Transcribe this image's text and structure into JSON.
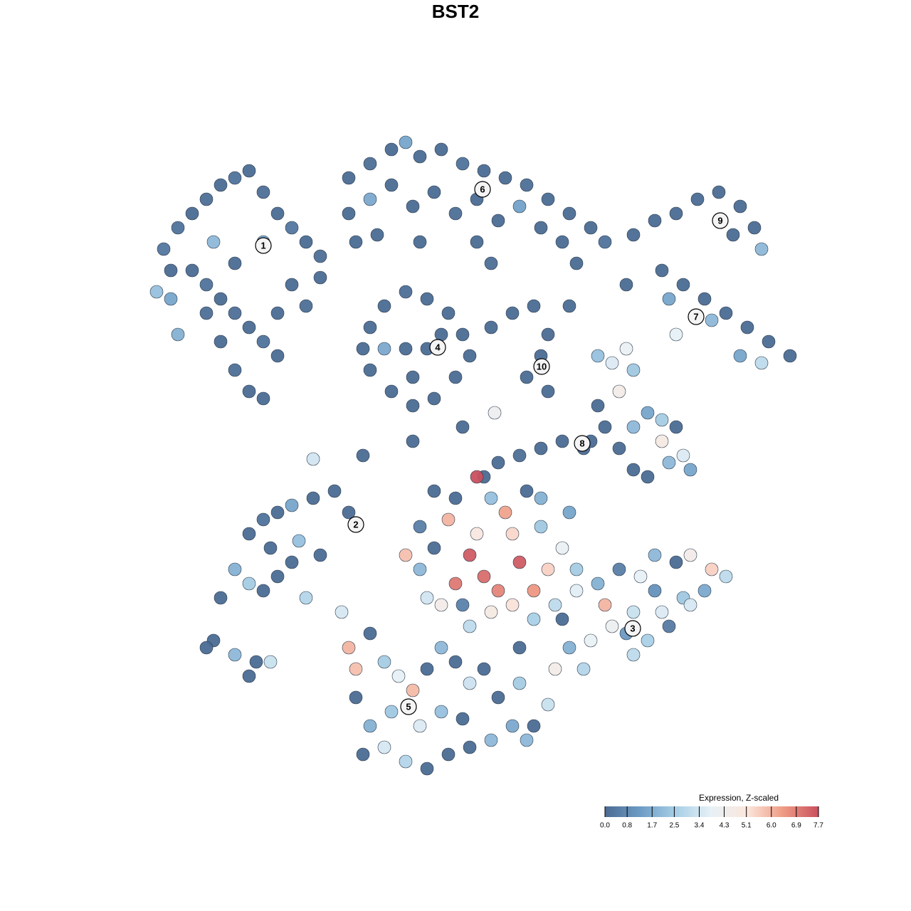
{
  "chart_data": {
    "type": "scatter",
    "title": "BST2",
    "xlim": [
      0,
      95
    ],
    "ylim": [
      0,
      93
    ],
    "x": [
      4,
      6,
      8,
      10,
      12,
      14,
      16,
      18,
      20,
      22,
      24,
      26,
      8,
      10,
      12,
      14,
      16,
      18,
      20,
      14,
      16,
      18,
      12,
      10,
      5,
      3,
      6,
      22,
      24,
      26,
      18,
      11,
      14,
      20,
      5,
      30,
      33,
      36,
      38,
      40,
      43,
      46,
      49,
      52,
      55,
      58,
      61,
      64,
      66,
      30,
      33,
      36,
      39,
      42,
      45,
      48,
      51,
      54,
      57,
      60,
      62,
      31,
      34,
      48,
      50,
      40,
      33,
      35,
      38,
      41,
      44,
      46,
      47,
      45,
      42,
      39,
      36,
      33,
      32,
      38,
      41,
      35,
      43,
      39,
      50,
      53,
      56,
      58,
      57,
      55,
      58,
      61,
      70,
      73,
      76,
      79,
      82,
      85,
      87,
      88,
      84,
      74,
      77,
      80,
      83,
      86,
      89,
      92,
      81,
      85,
      88,
      75,
      69,
      76,
      65,
      67,
      69,
      70,
      68,
      65,
      66,
      64,
      68,
      70,
      72,
      74,
      76,
      77,
      75,
      72,
      70,
      78,
      74,
      63,
      60,
      57,
      54,
      51,
      49,
      16,
      18,
      20,
      22,
      25,
      28,
      30,
      14,
      16,
      18,
      20,
      22,
      24,
      26,
      19,
      23,
      12,
      29,
      11,
      14,
      17,
      19,
      10,
      16,
      62,
      65,
      68,
      71,
      73,
      76,
      78,
      81,
      83,
      80,
      77,
      74,
      70,
      67,
      64,
      61,
      59,
      63,
      69,
      72,
      75,
      78,
      66,
      70,
      60,
      73,
      48,
      52,
      44,
      47,
      54,
      49,
      51,
      45,
      56,
      58,
      42,
      40,
      43,
      47,
      50,
      53,
      56,
      59,
      38,
      41,
      53,
      57,
      60,
      55,
      50,
      45,
      42,
      40,
      57,
      61,
      62,
      48,
      46,
      54,
      30,
      31,
      33,
      35,
      37,
      39,
      41,
      43,
      45,
      47,
      49,
      51,
      54,
      56,
      53,
      50,
      47,
      44,
      41,
      38,
      35,
      33,
      31,
      36,
      40,
      43,
      46,
      32,
      55,
      58,
      25,
      50.5,
      32,
      39,
      46
    ],
    "y": [
      75,
      78,
      80,
      82,
      84,
      85,
      86,
      83,
      80,
      78,
      76,
      74,
      72,
      70,
      68,
      66,
      64,
      62,
      60,
      58,
      55,
      54,
      62,
      66,
      68,
      69,
      63,
      70,
      67,
      71,
      76,
      76,
      73,
      66,
      72,
      85,
      87,
      89,
      90,
      88,
      89,
      87,
      86,
      85,
      84,
      82,
      80,
      78,
      76,
      80,
      82,
      84,
      81,
      83,
      80,
      82,
      79,
      81,
      78,
      76,
      73,
      76,
      77,
      76,
      73,
      76,
      64,
      67,
      69,
      68,
      66,
      63,
      60,
      57,
      54,
      53,
      55,
      58,
      61,
      61,
      61,
      61,
      63,
      57,
      64,
      66,
      67,
      63,
      60,
      57,
      55,
      67,
      77,
      79,
      80,
      82,
      83,
      81,
      78,
      75,
      77,
      72,
      70,
      68,
      66,
      64,
      62,
      60,
      65,
      60,
      59,
      68,
      70,
      63,
      60,
      59,
      61,
      58,
      55,
      53,
      50,
      48,
      47,
      50,
      52,
      51,
      50,
      46,
      45,
      43,
      44,
      44,
      48,
      47,
      48,
      47,
      46,
      45,
      43,
      35,
      37,
      38,
      39,
      40,
      41,
      38,
      30,
      28,
      27,
      29,
      31,
      26,
      32,
      33,
      34,
      26,
      24,
      20,
      18,
      17,
      17,
      19,
      15,
      30,
      28,
      30,
      29,
      32,
      31,
      32,
      30,
      29,
      27,
      26,
      24,
      24,
      22,
      20,
      19,
      16,
      16,
      21,
      20,
      22,
      25,
      25,
      18,
      23,
      27,
      43,
      38,
      37,
      32,
      31,
      29,
      27,
      28,
      27,
      30,
      33,
      30,
      25,
      22,
      24,
      25,
      23,
      25,
      32,
      26,
      35,
      36,
      33,
      41,
      40,
      40,
      41,
      36,
      40,
      38,
      27,
      35,
      25,
      19,
      19,
      16,
      21,
      17,
      15,
      13,
      16,
      19,
      17,
      14,
      16,
      12,
      14,
      8,
      8,
      6,
      5,
      4,
      2,
      3,
      5,
      8,
      12,
      10,
      8,
      10,
      9,
      4,
      6,
      11,
      45.5,
      52,
      46,
      48,
      50
    ],
    "values": [
      0.3,
      0.2,
      0,
      0.1,
      0,
      0.2,
      0,
      0.1,
      0,
      0.3,
      0,
      0.1,
      0,
      0.2,
      0,
      0.1,
      0,
      0.2,
      0,
      0.1,
      0,
      0,
      0,
      0.1,
      1.5,
      2.2,
      1.8,
      0,
      0.1,
      0,
      1.6,
      2.0,
      0,
      0,
      0,
      0,
      0.1,
      0,
      1.5,
      0,
      0,
      0.2,
      0,
      0,
      0.1,
      0,
      0,
      0,
      0.2,
      0,
      1.6,
      0,
      0,
      0,
      0.1,
      0,
      0,
      1.4,
      0,
      0,
      0,
      0,
      0,
      0,
      0.1,
      0,
      0,
      0,
      0.1,
      0,
      0,
      0,
      0,
      0,
      0,
      0,
      0,
      0,
      0,
      0,
      0,
      1.6,
      0,
      0,
      0,
      0,
      0,
      0,
      0,
      0,
      0,
      0,
      0,
      0,
      0,
      0,
      0,
      0,
      0,
      2.0,
      0,
      0,
      0,
      0,
      0,
      0,
      0,
      0,
      2.0,
      1.5,
      3.0,
      1.5,
      0,
      3.8,
      2.2,
      3.6,
      4.0,
      2.4,
      4.6,
      0,
      0,
      0,
      0,
      2.0,
      1.5,
      2.5,
      0,
      3.6,
      2.0,
      0,
      0,
      1.5,
      4.8,
      0,
      0,
      0,
      0.1,
      0,
      0,
      0,
      0.2,
      0,
      1.5,
      0,
      0,
      0,
      1.8,
      2.5,
      0,
      0,
      0,
      2.8,
      0,
      0,
      2.2,
      0,
      3.5,
      0,
      2.0,
      0,
      3.2,
      0,
      0,
      2.5,
      1.8,
      0.5,
      3.8,
      2.0,
      0,
      4.5,
      5.5,
      3.0,
      1.6,
      2.4,
      3.6,
      3.2,
      4.2,
      3.9,
      1.8,
      4.6,
      2.8,
      1.2,
      2.6,
      0.4,
      3.5,
      6.0,
      3.0,
      0,
      1.0,
      7.7,
      6.3,
      6.0,
      7.5,
      7.5,
      7.2,
      6.8,
      7.0,
      6.5,
      5.5,
      0,
      2.0,
      4.5,
      3.0,
      4.8,
      5.2,
      2.6,
      3.0,
      5.8,
      3.4,
      5.4,
      2.4,
      4.0,
      0,
      2.2,
      0,
      0,
      0.5,
      1.8,
      1.5,
      3.7,
      5.0,
      0.6,
      0,
      6.0,
      5.8,
      0,
      2.5,
      3.8,
      5.9,
      0,
      2.0,
      0,
      3.3,
      0,
      0,
      2.5,
      0,
      1.6,
      2.0,
      0,
      0,
      0,
      2.8,
      3.5,
      1.8,
      0,
      2.4,
      3.6,
      2.2,
      0,
      0,
      2.0,
      3.2,
      3.4,
      4.2,
      0,
      0,
      0
    ],
    "clusters": {
      "labels": [
        "1",
        "2",
        "3",
        "4",
        "5",
        "6",
        "7",
        "8",
        "9",
        "10"
      ],
      "x": [
        18,
        31,
        69.9,
        42.5,
        38.4,
        48.8,
        78.8,
        62.8,
        82.2,
        57.1
      ],
      "y": [
        75.5,
        36.3,
        21.7,
        61.2,
        10.7,
        83.4,
        65.5,
        47.7,
        79,
        58.5
      ]
    },
    "colorbar": {
      "title": "Expression, Z-scaled",
      "clim": [
        0,
        7.7
      ],
      "colors": [
        "#4b6b93",
        "#6d9cc6",
        "#a8cfe6",
        "#e8f1f6",
        "#fbe6dc",
        "#ef9c84",
        "#c9505e"
      ],
      "ticks": [
        {
          "value": 0,
          "label": "0.0"
        },
        {
          "value": 0.8,
          "label": "0.8"
        },
        {
          "value": 1.7,
          "label": "1.7"
        },
        {
          "value": 2.5,
          "label": "2.5"
        },
        {
          "value": 3.4,
          "label": "3.4"
        },
        {
          "value": 4.3,
          "label": "4.3"
        },
        {
          "value": 5.1,
          "label": "5.1"
        },
        {
          "value": 6.0,
          "label": "6.0"
        },
        {
          "value": 6.9,
          "label": "6.9"
        },
        {
          "value": 7.7,
          "label": "7.7"
        }
      ]
    }
  }
}
